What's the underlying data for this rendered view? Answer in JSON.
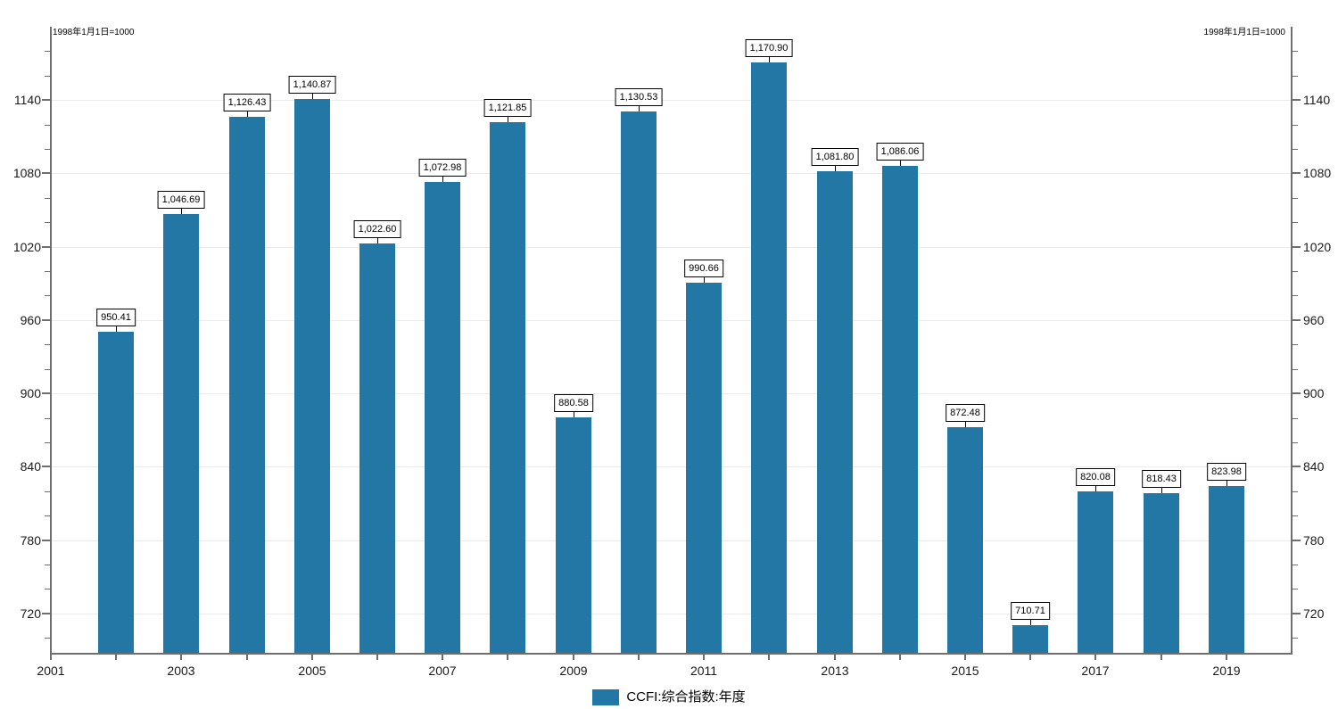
{
  "chart_data": {
    "type": "bar",
    "title": "CCFI:综合指数:年度",
    "note_left": "1998年1月1日=1000",
    "note_right": "1998年1月1日=1000",
    "categories": [
      "2002",
      "2003",
      "2004",
      "2005",
      "2006",
      "2007",
      "2008",
      "2009",
      "2010",
      "2011",
      "2012",
      "2013",
      "2014",
      "2015",
      "2016",
      "2017",
      "2018",
      "2019"
    ],
    "values": [
      950.41,
      1046.69,
      1126.43,
      1140.87,
      1022.6,
      1072.98,
      1121.85,
      880.58,
      1130.53,
      990.66,
      1170.9,
      1081.8,
      1086.06,
      872.48,
      710.71,
      820.08,
      818.43,
      823.98
    ],
    "value_labels": [
      "950.41",
      "1,046.69",
      "1,126.43",
      "1,140.87",
      "1,022.60",
      "1,072.98",
      "1,121.85",
      "880.58",
      "1,130.53",
      "990.66",
      "1,170.90",
      "1,081.80",
      "1,086.06",
      "872.48",
      "710.71",
      "820.08",
      "818.43",
      "823.98"
    ],
    "x_axis_labels": [
      "2001",
      "2003",
      "2005",
      "2007",
      "2009",
      "2011",
      "2013",
      "2015",
      "2017",
      "2019"
    ],
    "y_axis_major_ticks": [
      720,
      780,
      840,
      900,
      960,
      1020,
      1080,
      1140
    ],
    "y_minor_step": 20,
    "ylim": [
      687,
      1200
    ],
    "xlim": [
      2001,
      2020
    ],
    "grid": "horizontal-major",
    "legend_position": "bottom-center",
    "legend": {
      "label": "CCFI:综合指数:年度"
    },
    "colors": {
      "bar": "#2277a5",
      "axis": "#6e6e6e",
      "grid": "#ebebeb",
      "value_box_border": "#000000",
      "text": "#1a1a1a"
    }
  }
}
